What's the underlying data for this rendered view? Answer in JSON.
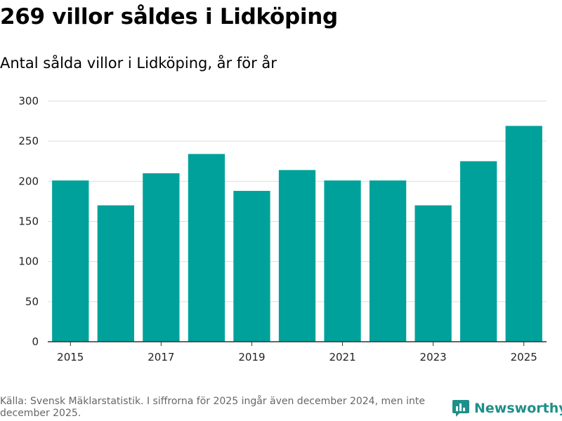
{
  "title": "269 villor såldes i Lidköping",
  "subtitle": "Antal sålda villor i Lidköping, år för år",
  "source": "Källa: Svensk Mäklarstatistik. I siffrorna för 2025 ingår även december 2024, men inte december 2025.",
  "logo": {
    "text": "Newsworthy",
    "icon": "bar-chart-speech-bubble-icon"
  },
  "colors": {
    "bar": "#00a19a",
    "grid": "#dddddd",
    "axis": "#333333",
    "logo": "#1f8f89"
  },
  "chart_data": {
    "type": "bar",
    "title": "269 villor såldes i Lidköping",
    "subtitle": "Antal sålda villor i Lidköping, år för år",
    "xlabel": "",
    "ylabel": "",
    "categories": [
      "2015",
      "2016",
      "2017",
      "2018",
      "2019",
      "2020",
      "2021",
      "2022",
      "2023",
      "2024",
      "2025"
    ],
    "values": [
      201,
      170,
      210,
      234,
      188,
      214,
      201,
      201,
      170,
      225,
      269
    ],
    "x_tick_labels": [
      "2015",
      "",
      "2017",
      "",
      "2019",
      "",
      "2021",
      "",
      "2023",
      "",
      "2025"
    ],
    "y_ticks": [
      0,
      50,
      100,
      150,
      200,
      250,
      300
    ],
    "ylim": [
      0,
      300
    ],
    "grid": true,
    "legend": "none"
  }
}
